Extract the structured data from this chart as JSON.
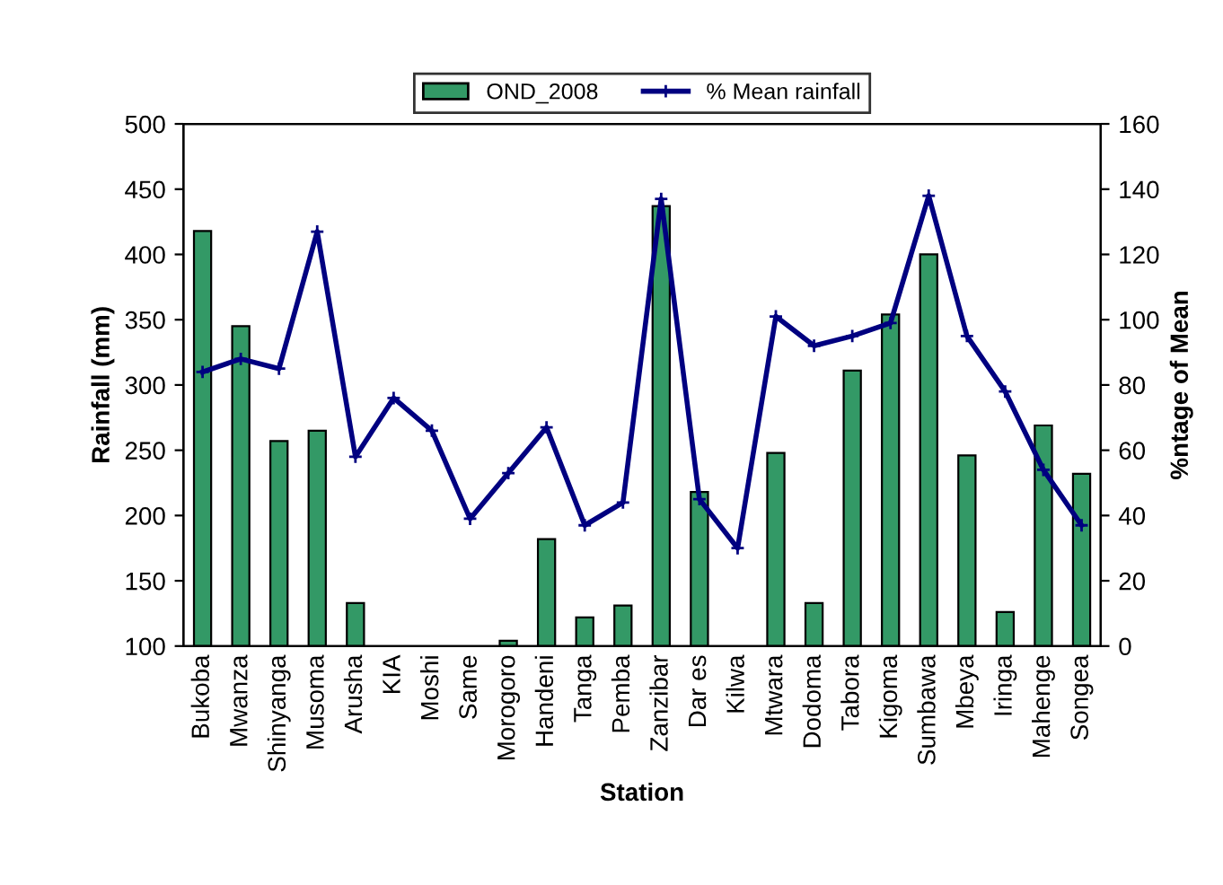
{
  "chart_data": {
    "type": "bar",
    "xlabel": "Station",
    "ylabel": "Rainfall (mm)",
    "y2label": "%ntage of Mean",
    "categories": [
      "Bukoba",
      "Mwanza",
      "Shinyanga",
      "Musoma",
      "Arusha",
      "KIA",
      "Moshi",
      "Same",
      "Morogoro",
      "Handeni",
      "Tanga",
      "Pemba",
      "Zanzibar",
      "Dar es",
      "Kilwa",
      "Mtwara",
      "Dodoma",
      "Tabora",
      "Kigoma",
      "Sumbawa",
      "Mbeya",
      "Iringa",
      "Mahenge",
      "Songea"
    ],
    "series": [
      {
        "name": "OND_2008",
        "color": "#339966",
        "values": [
          418,
          345,
          257,
          265,
          133,
          null,
          null,
          null,
          104,
          182,
          122,
          131,
          437,
          218,
          null,
          248,
          133,
          311,
          354,
          400,
          246,
          126,
          269,
          232
        ]
      },
      {
        "name": "% Mean rainfall",
        "type": "line",
        "axis": "y2",
        "color": "#000080",
        "marker": "cross",
        "line_style": "solid",
        "values": [
          84,
          88,
          85,
          127,
          58,
          76,
          66,
          39,
          53,
          67,
          37,
          44,
          137,
          45,
          30,
          101,
          92,
          95,
          99,
          138,
          95,
          78,
          54,
          37
        ]
      }
    ],
    "ylim": [
      100,
      500
    ],
    "yticks": [
      100,
      150,
      200,
      250,
      300,
      350,
      400,
      450,
      500
    ],
    "y2lim": [
      0,
      160
    ],
    "y2ticks": [
      0,
      20,
      40,
      60,
      80,
      100,
      120,
      140,
      160
    ],
    "grid": false,
    "legend": "top"
  }
}
